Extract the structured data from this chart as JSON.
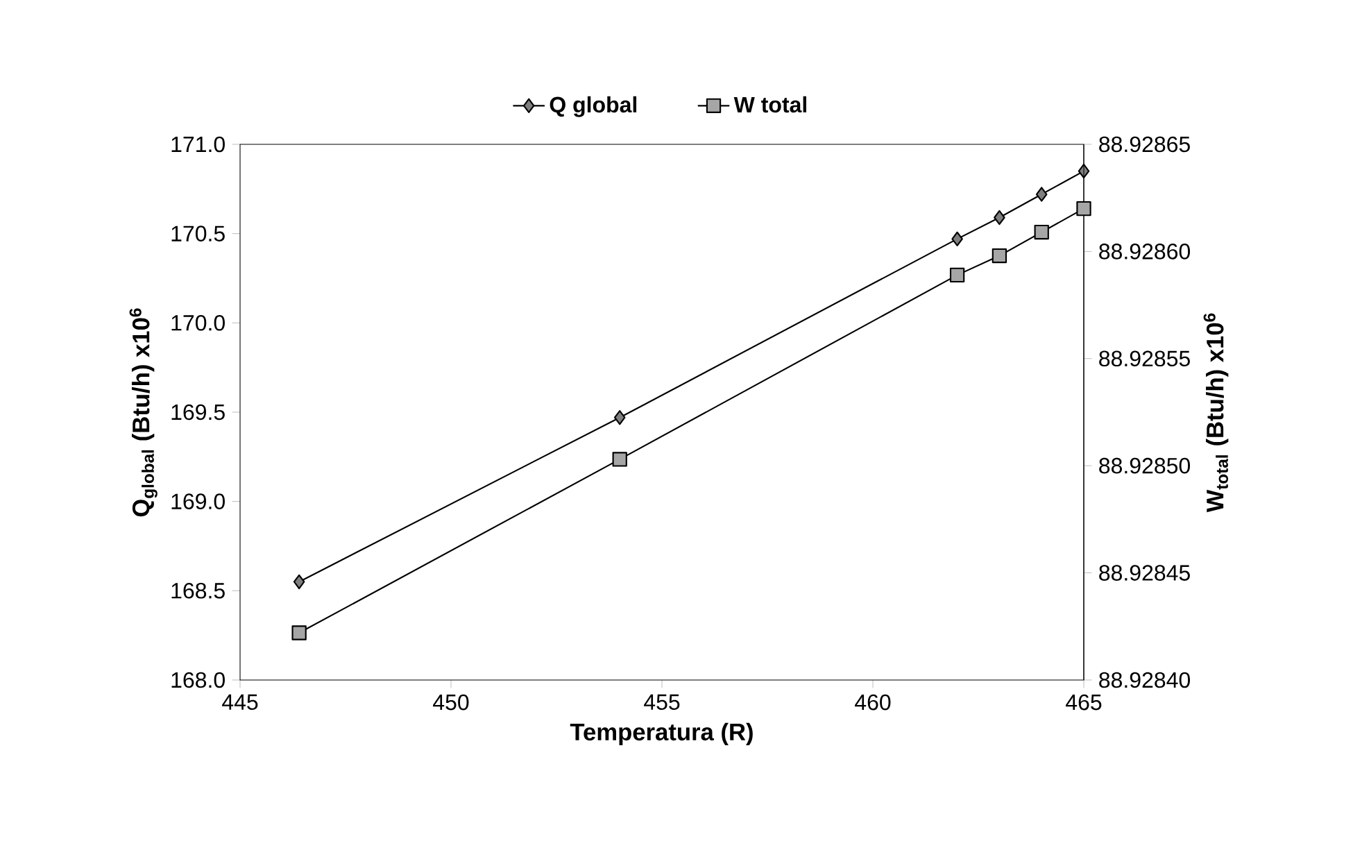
{
  "chart_data": {
    "type": "line",
    "xlabel": "Temperatura (R)",
    "ylabel": "Q$_{global}$ (Btu/h)  x10$^{6}$",
    "y2label": "W$_{total}$ (Btu/h)  x10$^{6}$",
    "x": [
      446.4,
      454,
      462,
      463,
      464,
      465
    ],
    "series": [
      {
        "name": "Q global",
        "color": "#7f7f7f",
        "marker": "diamond",
        "values": [
          168.55,
          169.47,
          170.47,
          170.59,
          170.72,
          170.85
        ]
      },
      {
        "name": "W total",
        "color": "#a6a6a6",
        "marker": "square",
        "axis": "y2",
        "values": [
          88.928422,
          88.928503,
          88.928589,
          88.928598,
          88.928609,
          88.92862
        ]
      }
    ],
    "xlim": [
      445,
      465
    ],
    "xticks": [
      445,
      450,
      455,
      460,
      465
    ],
    "ylim": [
      168,
      171
    ],
    "yticks": [
      {
        "value": 168,
        "label": "168.0"
      },
      {
        "value": 168.5,
        "label": "168.5"
      },
      {
        "value": 169,
        "label": "169.0"
      },
      {
        "value": 169.5,
        "label": "169.5"
      },
      {
        "value": 170,
        "label": "170.0"
      },
      {
        "value": 170.5,
        "label": "170.5"
      },
      {
        "value": 171,
        "label": "171.0"
      }
    ],
    "y2lim": [
      88.9284,
      88.92865
    ],
    "y2ticks": [
      {
        "value": 88.9284,
        "label": "88.92840"
      },
      {
        "value": 88.92845,
        "label": "88.92845"
      },
      {
        "value": 88.9285,
        "label": "88.92850"
      },
      {
        "value": 88.92855,
        "label": "88.92855"
      },
      {
        "value": 88.9286,
        "label": "88.92860"
      },
      {
        "value": 88.92865,
        "label": "88.92865"
      }
    ],
    "legend": "top"
  }
}
